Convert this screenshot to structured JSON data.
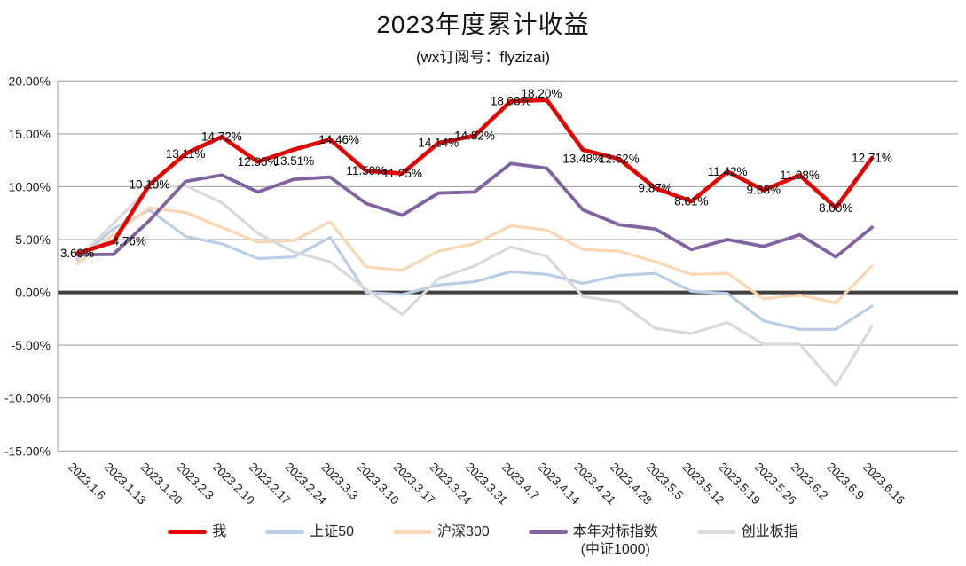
{
  "title": "2023年度累计收益",
  "subtitle": "(wx订阅号：flyzizai)",
  "chart_data": {
    "type": "line",
    "title": "2023年度累计收益",
    "subtitle": "(wx订阅号：flyzizai)",
    "grid": true,
    "legend_position": "bottom",
    "ylim": [
      -15,
      20
    ],
    "y_tick_labels": [
      "20.00%",
      "15.00%",
      "10.00%",
      "5.00%",
      "0.00%",
      "-5.00%",
      "-10.00%",
      "-15.00%"
    ],
    "y_tick_values": [
      20,
      15,
      10,
      5,
      0,
      -5,
      -10,
      -15
    ],
    "grid_color": "#9a9a9a",
    "zero_line_color": "#3f3f3f",
    "x_labels": [
      "2023.1.6",
      "2023.1.13",
      "2023.1.20",
      "2023.2.3",
      "2023.2.10",
      "2023.2.17",
      "2023.2.24",
      "2023.3.3",
      "2023.3.10",
      "2023.3.17",
      "2023.3.24",
      "2023.3.31",
      "2023.4.7",
      "2023.4.14",
      "2023.4.21",
      "2023.4.28",
      "2023.5.5",
      "2023.5.12",
      "2023.5.19",
      "2023.5.26",
      "2023.6.2",
      "2023.6.9",
      "2023.6.16"
    ],
    "series": [
      {
        "name": "我",
        "color": "#e60000",
        "values": [
          3.69,
          4.76,
          10.19,
          13.11,
          14.72,
          12.35,
          13.51,
          14.46,
          11.5,
          11.25,
          14.14,
          14.82,
          18.08,
          18.2,
          13.48,
          12.62,
          9.87,
          8.61,
          11.42,
          9.68,
          11.08,
          8.0,
          12.71
        ],
        "point_labels": [
          "3.69%",
          "4.76%",
          "10.19%",
          "13.11%",
          "14.72%",
          "12.35%",
          "13.51%",
          "14.46%",
          "11.50%",
          "11.25%",
          "14.14%",
          "14.82%",
          "18.08%",
          "18.20%",
          "13.48%",
          "12.62%",
          "9.87%",
          "8.61%",
          "11.42%",
          "9.68%",
          "11.08%",
          "8.00%",
          "12.71%"
        ]
      },
      {
        "name": "上证50",
        "color": "#b9cde5",
        "values": [
          3.1,
          6.0,
          7.8,
          5.3,
          4.6,
          3.2,
          3.35,
          5.2,
          0.0,
          -0.2,
          0.7,
          1.0,
          1.95,
          1.7,
          0.85,
          1.6,
          1.8,
          0.1,
          -0.1,
          -2.7,
          -3.5,
          -3.5,
          -1.3
        ]
      },
      {
        "name": "沪深300",
        "color": "#fbd6b3",
        "values": [
          2.7,
          5.5,
          8.0,
          7.55,
          6.15,
          4.75,
          4.9,
          6.7,
          2.4,
          2.1,
          3.9,
          4.6,
          6.3,
          5.9,
          4.05,
          3.9,
          2.9,
          1.7,
          1.8,
          -0.6,
          -0.25,
          -1.0,
          2.5
        ]
      },
      {
        "name": "本年对标指数",
        "name_line2": "(中证1000)",
        "color": "#8064a2",
        "values": [
          3.55,
          3.6,
          6.8,
          10.5,
          11.1,
          9.5,
          10.7,
          10.9,
          8.4,
          7.3,
          9.4,
          9.5,
          12.2,
          11.75,
          7.8,
          6.4,
          6.0,
          4.05,
          5.0,
          4.35,
          5.45,
          3.35,
          6.15
        ]
      },
      {
        "name": "创业板指",
        "color": "#d9d9d9",
        "values": [
          3.2,
          6.5,
          9.9,
          10.1,
          8.5,
          5.6,
          3.8,
          2.9,
          0.3,
          -2.1,
          1.3,
          2.5,
          4.3,
          3.4,
          -0.4,
          -0.9,
          -3.4,
          -3.9,
          -2.85,
          -4.9,
          -4.9,
          -8.8,
          -3.2
        ]
      }
    ]
  }
}
